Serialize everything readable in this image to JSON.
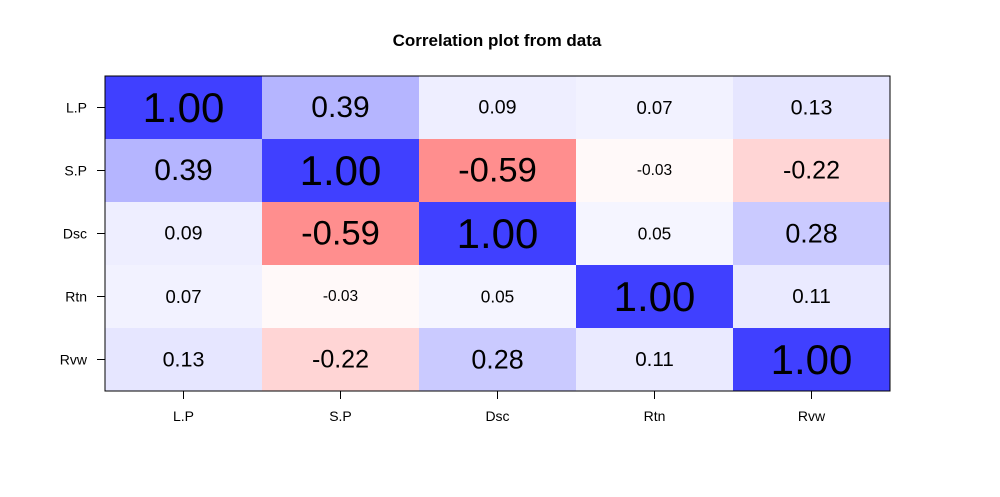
{
  "chart_data": {
    "type": "heatmap",
    "title": "Correlation plot from data",
    "xlabel": "",
    "ylabel": "",
    "rows": [
      "L.P",
      "S.P",
      "Dsc",
      "Rtn",
      "Rvw"
    ],
    "cols": [
      "L.P",
      "S.P",
      "Dsc",
      "Rtn",
      "Rvw"
    ],
    "values": [
      [
        1.0,
        0.39,
        0.09,
        0.07,
        0.13
      ],
      [
        0.39,
        1.0,
        -0.59,
        -0.03,
        -0.22
      ],
      [
        0.09,
        -0.59,
        1.0,
        0.05,
        0.28
      ],
      [
        0.07,
        -0.03,
        0.05,
        1.0,
        0.11
      ],
      [
        0.13,
        -0.22,
        0.28,
        0.11,
        1.0
      ]
    ],
    "labels": [
      [
        "1.00",
        "0.39",
        "0.09",
        "0.07",
        "0.13"
      ],
      [
        "0.39",
        "1.00",
        "-0.59",
        "-0.03",
        "-0.22"
      ],
      [
        "0.09",
        "-0.59",
        "1.00",
        "0.05",
        "0.28"
      ],
      [
        "0.07",
        "-0.03",
        "0.05",
        "1.00",
        "0.11"
      ],
      [
        "0.13",
        "-0.22",
        "0.28",
        "0.11",
        "1.00"
      ]
    ],
    "colors": {
      "positive": "#4040ff",
      "negative": "#ff4040",
      "neutral": "#ffffff",
      "border": "#000000"
    },
    "grid": false,
    "legend": "none"
  }
}
